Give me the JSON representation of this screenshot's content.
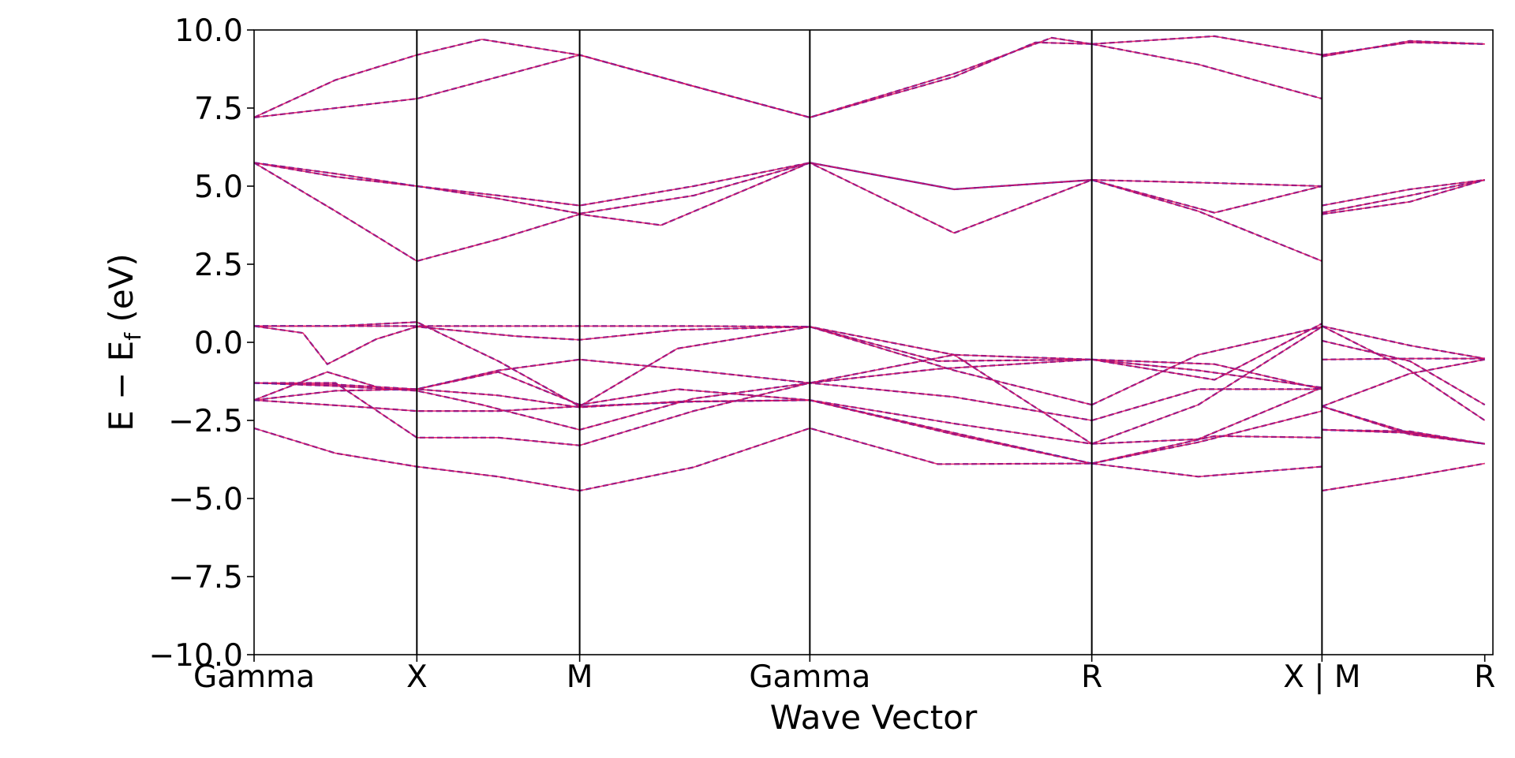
{
  "chart_data": {
    "type": "line",
    "title": "",
    "xlabel": "Wave Vector",
    "ylabel": "E − Ef (eV)",
    "ylabel_parts": {
      "main": "E − E",
      "sub": "f",
      "unit": " (eV)"
    },
    "ylim": [
      -10.0,
      10.0
    ],
    "yticks": [
      -10.0,
      -7.5,
      -5.0,
      -2.5,
      0.0,
      2.5,
      5.0,
      7.5,
      10.0
    ],
    "ytick_labels": [
      "−10.0",
      "−7.5",
      "−5.0",
      "−2.5",
      "0.0",
      "2.5",
      "5.0",
      "7.5",
      "10.0"
    ],
    "xlim": [
      0,
      7.61
    ],
    "kpoints": [
      {
        "label": "Gamma",
        "x": 0.0
      },
      {
        "label": "X",
        "x": 1.0
      },
      {
        "label": "M",
        "x": 2.0
      },
      {
        "label": "Gamma",
        "x": 3.414
      },
      {
        "label": "R",
        "x": 5.146
      },
      {
        "label": "X | M",
        "x": 6.56
      },
      {
        "label": "R",
        "x": 7.56
      }
    ],
    "grid": false,
    "legend": "none",
    "series_colors": {
      "primary": "#e0115f",
      "secondary": "#1f1fb4"
    },
    "bands": [
      {
        "points": [
          [
            0,
            -2.75
          ],
          [
            0.5,
            -3.55
          ],
          [
            1,
            -3.98
          ],
          [
            1.5,
            -4.3
          ],
          [
            2,
            -4.75
          ],
          [
            2.7,
            -4.0
          ],
          [
            3.414,
            -2.75
          ],
          [
            4.2,
            -3.9
          ],
          [
            5.146,
            -3.88
          ]
        ]
      },
      {
        "points": [
          [
            5.146,
            -3.88
          ],
          [
            5.8,
            -4.3
          ],
          [
            6.56,
            -3.98
          ]
        ]
      },
      {
        "points": [
          [
            6.56,
            -4.75
          ],
          [
            7.1,
            -4.3
          ],
          [
            7.56,
            -3.88
          ]
        ]
      },
      {
        "points": [
          [
            0,
            -1.85
          ],
          [
            0.6,
            -2.05
          ],
          [
            1,
            -2.2
          ],
          [
            1.5,
            -2.2
          ],
          [
            2,
            -2.05
          ],
          [
            2.7,
            -1.9
          ],
          [
            3.414,
            -1.85
          ],
          [
            4.3,
            -2.9
          ],
          [
            5.146,
            -3.88
          ]
        ]
      },
      {
        "points": [
          [
            5.146,
            -3.88
          ],
          [
            5.8,
            -3.2
          ],
          [
            6.56,
            -2.2
          ]
        ]
      },
      {
        "points": [
          [
            6.56,
            -2.05
          ],
          [
            7.1,
            -1.0
          ],
          [
            7.56,
            -0.55
          ]
        ]
      },
      {
        "points": [
          [
            0,
            -1.85
          ],
          [
            0.5,
            -1.55
          ],
          [
            1,
            -1.5
          ],
          [
            1.5,
            -1.7
          ],
          [
            2,
            -2.08
          ],
          [
            2.6,
            -1.9
          ],
          [
            3.414,
            -1.85
          ],
          [
            4.3,
            -2.95
          ],
          [
            5.146,
            -3.88
          ]
        ]
      },
      {
        "points": [
          [
            5.146,
            -3.88
          ],
          [
            5.9,
            -3.0
          ],
          [
            6.56,
            -3.05
          ]
        ]
      },
      {
        "points": [
          [
            6.56,
            -2.8
          ],
          [
            7.1,
            -2.9
          ],
          [
            7.56,
            -3.25
          ]
        ]
      },
      {
        "points": [
          [
            0,
            -1.3
          ],
          [
            0.5,
            -1.4
          ],
          [
            1,
            -1.55
          ],
          [
            1.4,
            -2.0
          ],
          [
            2,
            -2.8
          ],
          [
            2.7,
            -1.8
          ],
          [
            3.414,
            -1.3
          ],
          [
            4.2,
            -0.85
          ],
          [
            5.146,
            -0.55
          ]
        ]
      },
      {
        "points": [
          [
            5.146,
            -0.55
          ],
          [
            5.8,
            -0.9
          ],
          [
            6.56,
            -1.45
          ]
        ]
      },
      {
        "points": [
          [
            6.56,
            0.05
          ],
          [
            7.1,
            -0.6
          ],
          [
            7.56,
            -2.0
          ]
        ]
      },
      {
        "points": [
          [
            0,
            0.52
          ],
          [
            0.7,
            0.52
          ],
          [
            1,
            0.52
          ],
          [
            1.5,
            0.52
          ],
          [
            2,
            0.52
          ],
          [
            2.7,
            0.52
          ],
          [
            3.414,
            0.5
          ],
          [
            4.2,
            -0.6
          ],
          [
            5.146,
            -0.55
          ]
        ]
      },
      {
        "points": [
          [
            5.146,
            -0.55
          ],
          [
            5.9,
            -0.7
          ],
          [
            6.56,
            -1.5
          ]
        ]
      },
      {
        "points": [
          [
            6.56,
            -0.55
          ],
          [
            7.1,
            -0.52
          ],
          [
            7.56,
            -0.52
          ]
        ]
      },
      {
        "points": [
          [
            0,
            0.52
          ],
          [
            0.3,
            0.3
          ],
          [
            0.45,
            -0.7
          ],
          [
            0.75,
            0.1
          ],
          [
            1,
            0.5
          ],
          [
            1.6,
            0.2
          ],
          [
            2,
            0.08
          ],
          [
            2.6,
            0.4
          ],
          [
            3.414,
            0.5
          ],
          [
            4.3,
            -0.9
          ],
          [
            5.146,
            -2.0
          ]
        ]
      },
      {
        "points": [
          [
            5.146,
            -2.0
          ],
          [
            5.8,
            -0.4
          ],
          [
            6.56,
            0.5
          ]
        ]
      },
      {
        "points": [
          [
            6.56,
            0.52
          ],
          [
            7.1,
            -0.9
          ],
          [
            7.56,
            -2.5
          ]
        ]
      },
      {
        "points": [
          [
            0,
            -1.85
          ],
          [
            0.45,
            -0.95
          ],
          [
            0.8,
            -1.5
          ],
          [
            1,
            -1.5
          ],
          [
            1.5,
            -0.9
          ],
          [
            2,
            -0.55
          ],
          [
            2.7,
            -0.9
          ],
          [
            3.414,
            -1.3
          ],
          [
            4.3,
            -1.75
          ],
          [
            5.146,
            -2.5
          ]
        ]
      },
      {
        "points": [
          [
            5.146,
            -2.5
          ],
          [
            5.8,
            -1.5
          ],
          [
            6.56,
            -1.5
          ]
        ]
      },
      {
        "points": [
          [
            6.56,
            -2.05
          ],
          [
            7.1,
            -2.9
          ],
          [
            7.56,
            -3.25
          ]
        ]
      },
      {
        "points": [
          [
            0,
            -1.3
          ],
          [
            0.5,
            -1.35
          ],
          [
            1,
            -1.5
          ],
          [
            1.5,
            -0.95
          ],
          [
            2,
            -2.0
          ],
          [
            2.6,
            -1.5
          ],
          [
            3.414,
            -1.85
          ],
          [
            4.3,
            -2.6
          ],
          [
            5.146,
            -3.25
          ]
        ]
      },
      {
        "points": [
          [
            5.146,
            -3.25
          ],
          [
            5.8,
            -3.1
          ],
          [
            6.56,
            -1.45
          ]
        ]
      },
      {
        "points": [
          [
            6.56,
            -2.05
          ],
          [
            7.1,
            -2.95
          ],
          [
            7.56,
            -3.25
          ]
        ]
      },
      {
        "points": [
          [
            0,
            0.52
          ],
          [
            0.5,
            0.52
          ],
          [
            1,
            0.65
          ],
          [
            1.5,
            -0.6
          ],
          [
            2,
            -2.05
          ],
          [
            2.6,
            -0.2
          ],
          [
            3.414,
            0.5
          ],
          [
            4.3,
            -0.4
          ],
          [
            5.146,
            -3.25
          ]
        ]
      },
      {
        "points": [
          [
            5.146,
            -3.25
          ],
          [
            5.8,
            -2.0
          ],
          [
            6.56,
            0.5
          ]
        ]
      },
      {
        "points": [
          [
            6.56,
            0.52
          ],
          [
            7.1,
            -0.1
          ],
          [
            7.56,
            -0.52
          ]
        ]
      },
      {
        "points": [
          [
            0,
            -1.3
          ],
          [
            0.5,
            -1.3
          ],
          [
            1,
            -3.05
          ],
          [
            1.5,
            -3.05
          ],
          [
            2,
            -3.3
          ],
          [
            2.7,
            -2.2
          ],
          [
            3.414,
            -1.3
          ],
          [
            4.3,
            -0.4
          ],
          [
            5.146,
            -0.55
          ]
        ]
      },
      {
        "points": [
          [
            5.146,
            -0.55
          ],
          [
            5.9,
            -1.2
          ],
          [
            6.56,
            0.6
          ]
        ]
      },
      {
        "points": [
          [
            6.56,
            -2.8
          ],
          [
            7.1,
            -2.85
          ],
          [
            7.56,
            -3.25
          ]
        ]
      },
      {
        "points": [
          [
            0,
            5.75
          ],
          [
            0.5,
            4.2
          ],
          [
            1,
            2.6
          ],
          [
            1.5,
            3.3
          ],
          [
            2,
            4.1
          ],
          [
            2.5,
            3.75
          ],
          [
            3.414,
            5.75
          ],
          [
            4.3,
            3.5
          ],
          [
            5.146,
            5.2
          ]
        ]
      },
      {
        "points": [
          [
            5.146,
            5.2
          ],
          [
            5.8,
            4.2
          ],
          [
            6.56,
            2.6
          ]
        ]
      },
      {
        "points": [
          [
            6.56,
            4.1
          ],
          [
            7.1,
            4.5
          ],
          [
            7.56,
            5.2
          ]
        ]
      },
      {
        "points": [
          [
            0,
            5.75
          ],
          [
            0.5,
            5.4
          ],
          [
            1,
            5.0
          ],
          [
            1.5,
            4.6
          ],
          [
            2,
            4.12
          ],
          [
            2.7,
            4.7
          ],
          [
            3.414,
            5.75
          ],
          [
            4.3,
            4.9
          ],
          [
            5.146,
            5.2
          ]
        ]
      },
      {
        "points": [
          [
            5.146,
            5.2
          ],
          [
            5.9,
            4.15
          ],
          [
            6.56,
            5.0
          ]
        ]
      },
      {
        "points": [
          [
            6.56,
            4.15
          ],
          [
            7.1,
            4.7
          ],
          [
            7.56,
            5.2
          ]
        ]
      },
      {
        "points": [
          [
            0,
            5.75
          ],
          [
            0.5,
            5.3
          ],
          [
            1,
            5.0
          ],
          [
            1.5,
            4.7
          ],
          [
            2,
            4.38
          ],
          [
            2.7,
            5.0
          ],
          [
            3.414,
            5.75
          ],
          [
            4.3,
            4.9
          ],
          [
            5.146,
            5.2
          ]
        ]
      },
      {
        "points": [
          [
            5.146,
            5.2
          ],
          [
            5.9,
            5.1
          ],
          [
            6.56,
            5.0
          ]
        ]
      },
      {
        "points": [
          [
            6.56,
            4.38
          ],
          [
            7.1,
            4.9
          ],
          [
            7.56,
            5.2
          ]
        ]
      },
      {
        "points": [
          [
            0,
            7.2
          ],
          [
            0.5,
            7.5
          ],
          [
            1,
            7.8
          ],
          [
            1.5,
            8.5
          ],
          [
            2,
            9.2
          ],
          [
            2.7,
            8.2
          ],
          [
            3.414,
            7.2
          ],
          [
            4.3,
            8.5
          ],
          [
            4.8,
            9.6
          ],
          [
            5.146,
            9.55
          ]
        ]
      },
      {
        "points": [
          [
            5.146,
            9.55
          ],
          [
            5.8,
            8.9
          ],
          [
            6.56,
            7.8
          ]
        ]
      },
      {
        "points": [
          [
            6.56,
            9.2
          ],
          [
            7.1,
            9.6
          ],
          [
            7.56,
            9.55
          ]
        ]
      },
      {
        "points": [
          [
            0,
            7.2
          ],
          [
            0.5,
            8.4
          ],
          [
            1,
            9.2
          ],
          [
            1.4,
            9.7
          ],
          [
            2,
            9.2
          ],
          [
            2.7,
            8.2
          ],
          [
            3.414,
            7.2
          ],
          [
            4.3,
            8.6
          ],
          [
            4.9,
            9.75
          ],
          [
            5.146,
            9.55
          ]
        ]
      },
      {
        "points": [
          [
            5.146,
            9.55
          ],
          [
            5.9,
            9.8
          ],
          [
            6.56,
            9.2
          ]
        ]
      },
      {
        "points": [
          [
            6.56,
            9.15
          ],
          [
            7.1,
            9.65
          ],
          [
            7.56,
            9.55
          ]
        ]
      }
    ]
  }
}
